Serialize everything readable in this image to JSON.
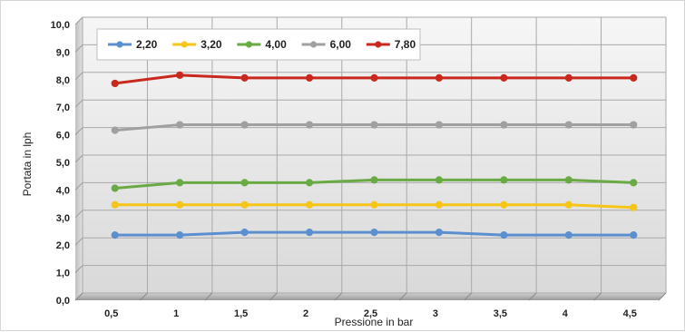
{
  "chart_data": {
    "type": "line",
    "title": "",
    "xlabel": "Pressione in bar",
    "ylabel": "Portata in lph",
    "ylim": [
      0,
      10
    ],
    "ytick_labels": [
      "0,0",
      "1,0",
      "2,0",
      "3,0",
      "4,0",
      "5,0",
      "6,0",
      "7,0",
      "8,0",
      "9,0",
      "10,0"
    ],
    "categories": [
      "0,5",
      "1",
      "1,5",
      "2",
      "2,5",
      "3",
      "3,5",
      "4",
      "4,5"
    ],
    "grid": true,
    "legend_position": "top-left",
    "series": [
      {
        "name": "2,20",
        "color": "#5b8fd0",
        "values": [
          2.1,
          2.1,
          2.2,
          2.2,
          2.2,
          2.2,
          2.1,
          2.1,
          2.1
        ]
      },
      {
        "name": "3,20",
        "color": "#f5c518",
        "values": [
          3.2,
          3.2,
          3.2,
          3.2,
          3.2,
          3.2,
          3.2,
          3.2,
          3.1
        ]
      },
      {
        "name": "4,00",
        "color": "#6aaa44",
        "values": [
          3.8,
          4.0,
          4.0,
          4.0,
          4.1,
          4.1,
          4.1,
          4.1,
          4.0
        ]
      },
      {
        "name": "6,00",
        "color": "#a0a0a0",
        "values": [
          5.9,
          6.1,
          6.1,
          6.1,
          6.1,
          6.1,
          6.1,
          6.1,
          6.1
        ]
      },
      {
        "name": "7,80",
        "color": "#c8281e",
        "values": [
          7.6,
          7.9,
          7.8,
          7.8,
          7.8,
          7.8,
          7.8,
          7.8,
          7.8
        ]
      }
    ]
  }
}
